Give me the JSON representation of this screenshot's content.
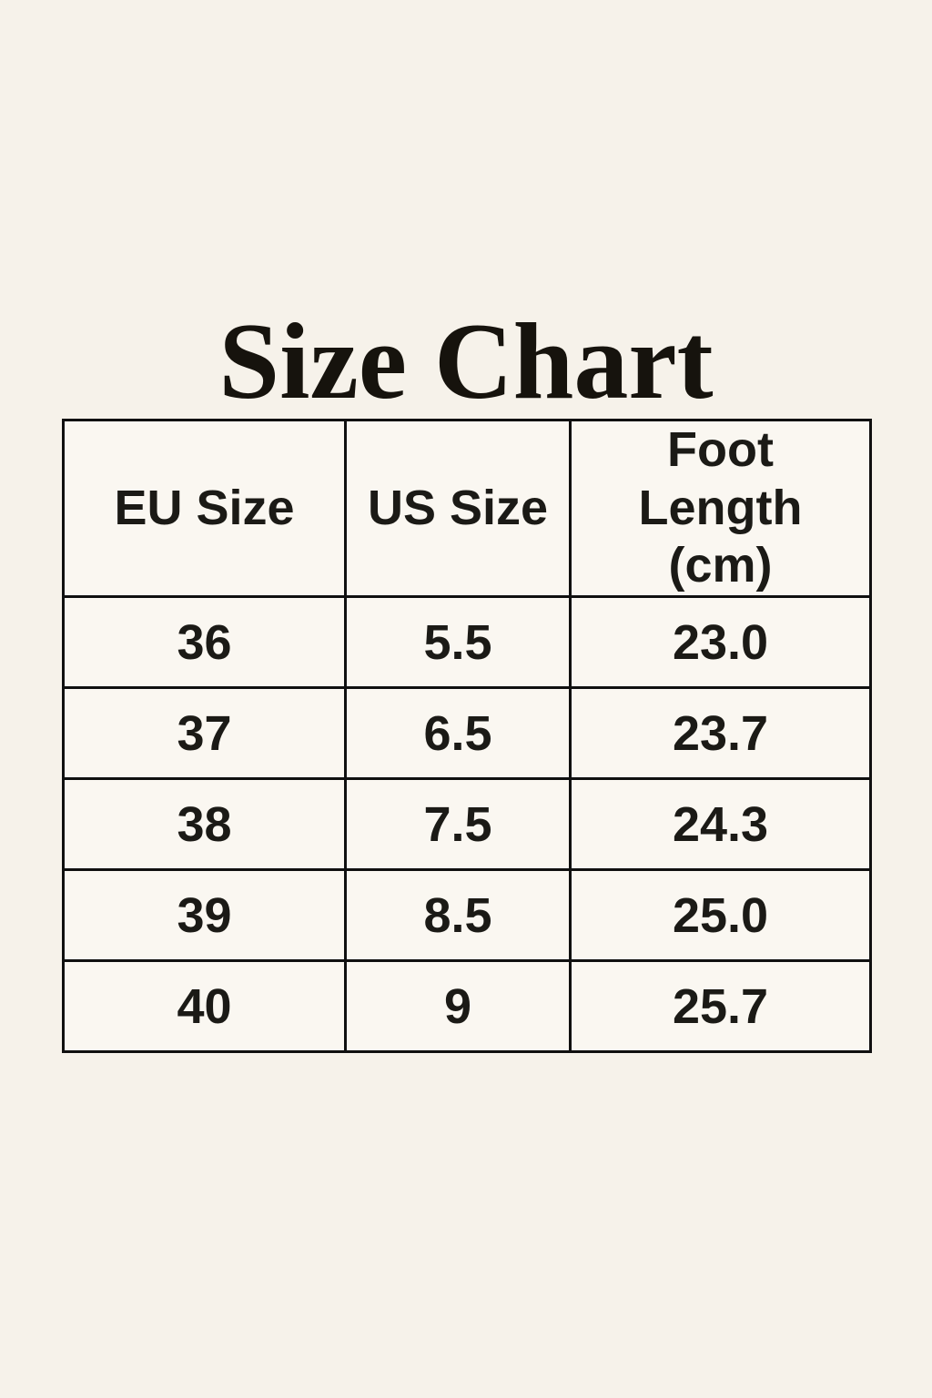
{
  "page": {
    "background_color": "#f6f2ea",
    "cell_background_color": "#faf7f1",
    "border_color": "#101010",
    "text_color": "#1b1a16"
  },
  "title": "Size Chart",
  "chart_data": {
    "type": "table",
    "title": "Size Chart",
    "columns": [
      "EU Size",
      "US Size",
      "Foot Length (cm)"
    ],
    "rows": [
      [
        "36",
        "5.5",
        "23.0"
      ],
      [
        "37",
        "6.5",
        "23.7"
      ],
      [
        "38",
        "7.5",
        "24.3"
      ],
      [
        "39",
        "8.5",
        "25.0"
      ],
      [
        "40",
        "9",
        "25.7"
      ]
    ]
  }
}
